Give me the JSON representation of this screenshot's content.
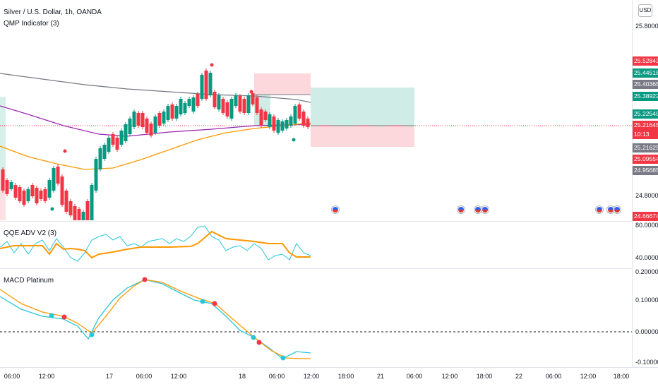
{
  "header": {
    "symbol_title": "Silver / U.S. Dollar, 1h, OANDA",
    "indicator_1": "QMP Indicator (3)",
    "currency_button": "USD"
  },
  "panes": {
    "qqe_title": "QQE ADV V2 (3)",
    "macd_title": "MACD Platinum"
  },
  "price_axis": {
    "ticks": [
      "25.80000",
      "24.80000"
    ],
    "badges": [
      {
        "label": "25.52843",
        "color": "#f23645"
      },
      {
        "label": "25.44518",
        "color": "#089981"
      },
      {
        "label": "25.40365",
        "color": "#787b86"
      },
      {
        "label": "25.38922",
        "color": "#089981"
      },
      {
        "label": "25.22540",
        "color": "#089981"
      },
      {
        "label": "25.21645",
        "color": "#f23645"
      },
      {
        "label": "10:13",
        "color": "#f23645"
      },
      {
        "label": "25.21625",
        "color": "#787b86"
      },
      {
        "label": "25.09554",
        "color": "#f23645"
      },
      {
        "label": "24.95685",
        "color": "#787b86"
      },
      {
        "label": "24.66674",
        "color": "#f23645"
      }
    ]
  },
  "qqe_axis": {
    "ticks": [
      "80.00000",
      "40.00000"
    ]
  },
  "macd_axis": {
    "ticks": [
      "0.20000",
      "0.10000",
      "0.00000",
      "-0.10000"
    ]
  },
  "time_axis": {
    "ticks": [
      "06:00",
      "12:00",
      "17",
      "06:00",
      "12:00",
      "18",
      "06:00",
      "12:00",
      "18:00",
      "21",
      "06:00",
      "12:00",
      "18:00",
      "22",
      "06:00",
      "12:00",
      "18:00"
    ]
  },
  "colors": {
    "up": "#089981",
    "down": "#f23645",
    "ma_long": "#787b86",
    "ma_mid": "#9c27b0",
    "ma_short": "#ff9800",
    "qqe_fast": "#26c6da",
    "qqe_slow": "#ff9800",
    "macd_line": "#26c6da",
    "signal_line": "#ff9800"
  },
  "events": {
    "icon": "us-flag-event-icon",
    "count": 7
  }
}
